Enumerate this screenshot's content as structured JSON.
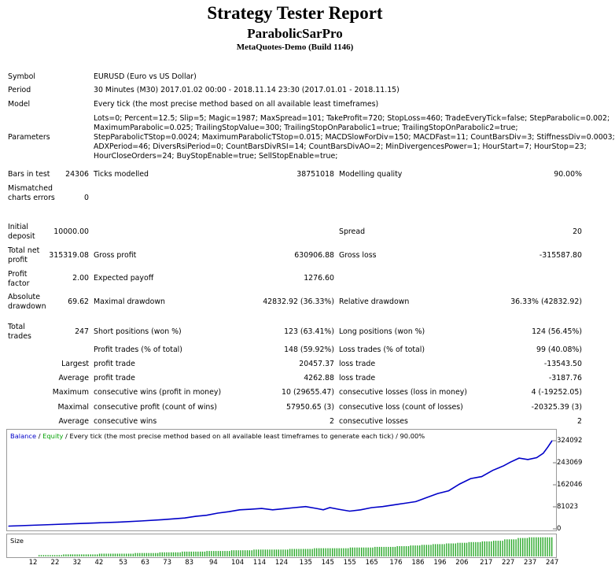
{
  "header": {
    "title": "Strategy Tester Report",
    "expert": "ParabolicSarPro",
    "server": "MetaQuotes-Demo (Build 1146)"
  },
  "settings": {
    "symbol_label": "Symbol",
    "symbol_value": "EURUSD (Euro vs US Dollar)",
    "period_label": "Period",
    "period_value": "30 Minutes (M30) 2017.01.02 00:00 - 2018.11.14 23:30 (2017.01.01 - 2018.11.15)",
    "model_label": "Model",
    "model_value": "Every tick (the most precise method based on all available least timeframes)",
    "parameters_label": "Parameters",
    "parameters_lines": [
      "Lots=0; Percent=12.5; Slip=5; Magic=1987; MaxSpread=101; TakeProfit=720; StopLoss=460; TradeEveryTick=false; StepParabolic=0.002;",
      "MaximumParabolic=0.025; TrailingStopValue=300; TrailingStopOnParabolic1=true; TrailingStopOnParabolic2=true;",
      "StepParabolicTStop=0.0024; MaximumParabolicTStop=0.015; MACDSlowForDiv=150; MACDFast=11; CountBarsDiv=3; StiffnessDiv=0.0003;",
      "ADXPeriod=46; DiversRsiPeriod=0; CountBarsDivRSI=14; CountBarsDivAO=2; MinDivergencesPower=1; HourStart=7; HourStop=23;",
      "HourCloseOrders=24; BuyStopEnable=true; SellStopEnable=true;"
    ]
  },
  "quality": {
    "bars_label": "Bars in test",
    "bars_value": "24306",
    "ticks_label": "Ticks modelled",
    "ticks_value": "38751018",
    "mq_label": "Modelling quality",
    "mq_value": "90.00%",
    "mismatch_label": "Mismatched charts errors",
    "mismatch_value": "0"
  },
  "results": {
    "initial_deposit_label": "Initial deposit",
    "initial_deposit_value": "10000.00",
    "spread_label": "Spread",
    "spread_value": "20",
    "net_profit_label": "Total net profit",
    "net_profit_value": "315319.08",
    "gross_profit_label": "Gross profit",
    "gross_profit_value": "630906.88",
    "gross_loss_label": "Gross loss",
    "gross_loss_value": "-315587.80",
    "profit_factor_label": "Profit factor",
    "profit_factor_value": "2.00",
    "expected_payoff_label": "Expected payoff",
    "expected_payoff_value": "1276.60",
    "abs_dd_label": "Absolute drawdown",
    "abs_dd_value": "69.62",
    "max_dd_label": "Maximal drawdown",
    "max_dd_value": "42832.92 (36.33%)",
    "rel_dd_label": "Relative drawdown",
    "rel_dd_value": "36.33% (42832.92)",
    "total_trades_label": "Total trades",
    "total_trades_value": "247",
    "short_label": "Short positions (won %)",
    "short_value": "123 (63.41%)",
    "long_label": "Long positions (won %)",
    "long_value": "124 (56.45%)",
    "profit_trades_label": "Profit trades (% of total)",
    "profit_trades_value": "148 (59.92%)",
    "loss_trades_label": "Loss trades (% of total)",
    "loss_trades_value": "99 (40.08%)",
    "largest_label": "Largest",
    "largest_profit_label": "profit trade",
    "largest_profit_value": "20457.37",
    "largest_loss_label": "loss trade",
    "largest_loss_value": "-13543.50",
    "average_label": "Average",
    "average_profit_label": "profit trade",
    "average_profit_value": "4262.88",
    "average_loss_label": "loss trade",
    "average_loss_value": "-3187.76",
    "maximum_label": "Maximum",
    "cons_wins_money_label": "consecutive wins (profit in money)",
    "cons_wins_money_value": "10 (29655.47)",
    "cons_losses_money_label": "consecutive losses (loss in money)",
    "cons_losses_money_value": "4 (-19252.05)",
    "maximal_label": "Maximal",
    "cons_profit_count_label": "consecutive profit (count of wins)",
    "cons_profit_count_value": "57950.65 (3)",
    "cons_loss_count_label": "consecutive loss (count of losses)",
    "cons_loss_count_value": "-20325.39 (3)",
    "average2_label": "Average",
    "avg_cons_wins_label": "consecutive wins",
    "avg_cons_wins_value": "2",
    "avg_cons_losses_label": "consecutive losses",
    "avg_cons_losses_value": "2"
  },
  "legend": {
    "balance": "Balance",
    "sep": " / ",
    "equity": "Equity",
    "rest": " / Every tick (the most precise method based on all available least timeframes to generate each tick) / 90.00%",
    "balance_color": "#0000c8",
    "equity_color": "#00a000"
  },
  "volume_label": "Size",
  "chart_data": {
    "type": "line",
    "xlabel": "",
    "ylabel": "",
    "x_ticks": [
      "12",
      "22",
      "32",
      "42",
      "53",
      "63",
      "73",
      "83",
      "94",
      "104",
      "114",
      "124",
      "135",
      "145",
      "155",
      "165",
      "176",
      "186",
      "196",
      "206",
      "217",
      "227",
      "237",
      "247"
    ],
    "y_ticks": [
      "324092",
      "243069",
      "162046",
      "81023",
      "0"
    ],
    "ylim": [
      0,
      324092
    ],
    "xlim": [
      0,
      247
    ],
    "series": [
      {
        "name": "Balance",
        "x": [
          0,
          10,
          20,
          30,
          40,
          50,
          60,
          70,
          80,
          85,
          90,
          95,
          100,
          105,
          110,
          115,
          120,
          125,
          130,
          135,
          140,
          143,
          146,
          150,
          155,
          160,
          165,
          170,
          175,
          180,
          185,
          190,
          195,
          200,
          205,
          210,
          215,
          220,
          225,
          228,
          232,
          236,
          240,
          243,
          245,
          247
        ],
        "values": [
          10000,
          13000,
          16000,
          19000,
          22000,
          25000,
          29000,
          34000,
          40000,
          46000,
          50000,
          58000,
          63000,
          70000,
          72000,
          75000,
          70000,
          74000,
          78000,
          82000,
          75000,
          70000,
          78000,
          72000,
          65000,
          70000,
          78000,
          82000,
          88000,
          94000,
          100000,
          115000,
          130000,
          140000,
          165000,
          185000,
          192000,
          215000,
          232000,
          245000,
          260000,
          255000,
          262000,
          278000,
          300000,
          324092
        ]
      }
    ],
    "volume": {
      "name": "Size",
      "values": [
        2,
        2,
        3,
        3,
        3,
        4,
        4,
        4,
        5,
        5,
        6,
        6,
        7,
        7,
        8,
        8,
        9,
        9,
        10,
        10,
        10,
        11,
        11,
        12,
        12,
        12,
        13,
        13,
        14,
        14,
        15,
        16,
        17,
        18,
        19,
        20,
        21,
        22,
        23,
        25,
        27,
        28,
        28
      ]
    },
    "grid": false
  }
}
